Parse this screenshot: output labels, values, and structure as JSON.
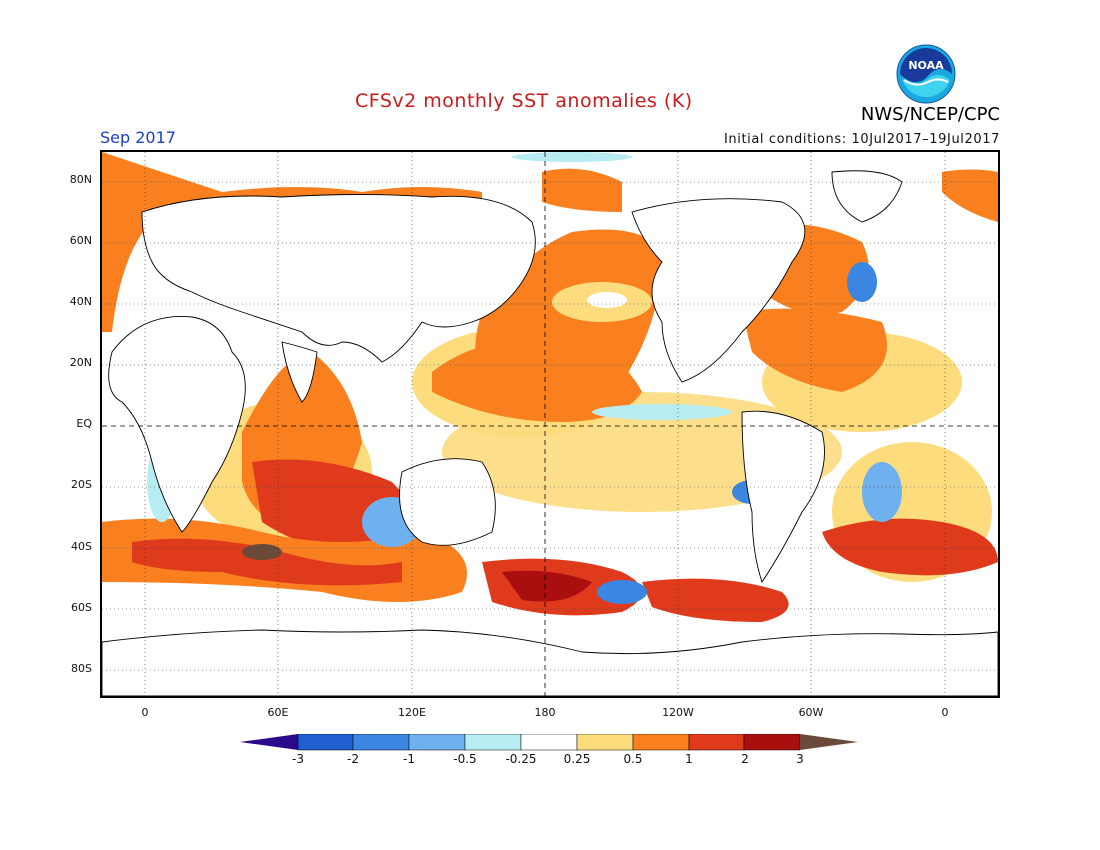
{
  "header": {
    "title": "CFSv2 monthly SST anomalies (K)",
    "agency": "NWS/NCEP/CPC",
    "logo_text": "NOAA",
    "month": "Sep 2017",
    "initial_conditions": "Initial conditions: 10Jul2017–19Jul2017"
  },
  "axes": {
    "lat_labels": [
      "80N",
      "60N",
      "40N",
      "20N",
      "EQ",
      "20S",
      "40S",
      "60S",
      "80S"
    ],
    "lon_labels": [
      "0",
      "60E",
      "120E",
      "180",
      "120W",
      "60W",
      "0"
    ]
  },
  "colorbar": {
    "labels": [
      "-3",
      "-2",
      "-1",
      "-0.5",
      "-0.25",
      "0.25",
      "0.5",
      "1",
      "2",
      "3"
    ],
    "colors": [
      "#2a0a8a",
      "#1f5fd0",
      "#3a86e0",
      "#6fb0ee",
      "#b7ecf2",
      "#ffffff",
      "#fddc7e",
      "#f97f1f",
      "#e03a1c",
      "#aa0f0f",
      "#6b4a3a"
    ]
  },
  "colors": {
    "title": "#cc1a1a",
    "month": "#1a40c8",
    "warm1": "#fddc7e",
    "warm2": "#f97f1f",
    "warm3": "#e03a1c",
    "warm4": "#aa0f0f",
    "cool1": "#b7ecf2",
    "cool2": "#6fb0ee",
    "cool3": "#3a86e0"
  }
}
